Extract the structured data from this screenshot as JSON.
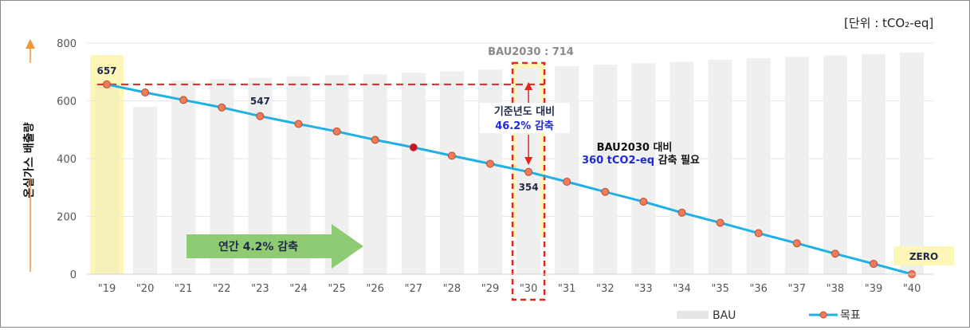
{
  "unit_label": "[단위 : tCO₂-eq]",
  "chart_data": {
    "type": "bar",
    "ylabel": "온실가스 배출량",
    "ylim": [
      0,
      800
    ],
    "yticks": [
      0,
      200,
      400,
      600,
      800
    ],
    "categories": [
      "\"19",
      "\"20",
      "\"21",
      "\"22",
      "\"23",
      "\"24",
      "\"25",
      "\"26",
      "\"27",
      "\"28",
      "\"29",
      "\"30",
      "\"31",
      "\"32",
      "\"33",
      "\"34",
      "\"35",
      "\"36",
      "\"37",
      "\"38",
      "\"39",
      "\"40"
    ],
    "series": [
      {
        "name": "BAU",
        "type": "bar",
        "color": "#efefef",
        "values": [
          657,
          580,
          670,
          675,
          680,
          685,
          690,
          692,
          697,
          702,
          708,
          714,
          720,
          725,
          730,
          735,
          742,
          747,
          752,
          757,
          762,
          767
        ]
      },
      {
        "name": "목표",
        "type": "line",
        "color": "#1fb1e6",
        "marker_color": "#f07c5c",
        "values": [
          657,
          629,
          603,
          577,
          547,
          520,
          494,
          465,
          439,
          410,
          382,
          354,
          320,
          285,
          251,
          213,
          178,
          142,
          107,
          71,
          36,
          0
        ]
      }
    ],
    "grid": true,
    "legend_position": "bottom-right",
    "annotations": {
      "start_value": "657",
      "mid_value": "547",
      "target_2030_value": "354",
      "bau2030": "BAU2030 : 714",
      "reduction_line1": "기준년도 대비",
      "reduction_line2": "46.2% 감축",
      "bau_compare_line1": "BAU2030 대비",
      "bau_compare_amount": "360 tCO2-eq",
      "bau_compare_suffix": " 감축 필요",
      "annual_arrow": "연간 4.2% 감축",
      "zero_label": "ZERO"
    },
    "colors": {
      "highlight": "#fdf6b6",
      "dashed_red": "#e8231b",
      "arrow_green": "#8fcb73",
      "text_blue": "#1d2ad6",
      "text_navy": "#1f2a4a",
      "axis_label_orange": "#f29436"
    }
  }
}
